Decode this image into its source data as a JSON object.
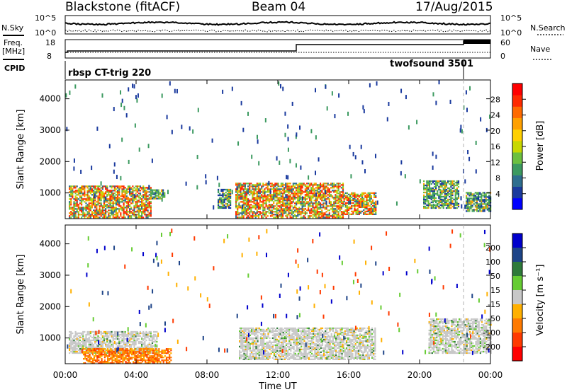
{
  "header": {
    "station": "Blackstone (fitACF)",
    "beam": "Beam 04",
    "date": "17/Aug/2015"
  },
  "top_panels": {
    "nsky_label": "N.Sky",
    "nsearch_label": "N.Search",
    "noise_ticks_left": [
      "10^5",
      "10^0"
    ],
    "noise_ticks_right": [
      "10^5",
      "10^0"
    ],
    "freq_label_1": "Freq.",
    "freq_label_2": "[MHz]",
    "freq_ticks": [
      "18",
      "8"
    ],
    "nave_label": "Nave",
    "nave_ticks": [
      "60",
      "0"
    ],
    "cpid_label": "CPID",
    "cpid_segments": [
      {
        "name": "rbsp CT-trig 220",
        "start_hour": 0.0
      },
      {
        "name": "twofsound 3501",
        "start_hour": 22.5
      }
    ]
  },
  "chart_data": [
    {
      "type": "heatmap",
      "title": "Power",
      "ylabel": "Slant Range [km]",
      "xlabel": "Time UT",
      "x_tick_labels": [
        "00:00",
        "04:00",
        "08:00",
        "12:00",
        "16:00",
        "20:00",
        "00:00"
      ],
      "x_range_hours": [
        0,
        24
      ],
      "ylim": [
        180,
        4600
      ],
      "y_ticks": [
        1000,
        2000,
        3000,
        4000
      ],
      "colorbar": {
        "label": "Power [dB]",
        "ticks": [
          "4",
          "8",
          "12",
          "16",
          "20",
          "24",
          "28"
        ],
        "colors": [
          "#0000ff",
          "#1a3a9e",
          "#2e6e8e",
          "#3c9a60",
          "#6cc040",
          "#c8d800",
          "#ffd000",
          "#ffa000",
          "#ff6a00",
          "#ff2a00",
          "#ff0000"
        ]
      },
      "echo_regions": [
        {
          "t0": 0.2,
          "t1": 4.8,
          "r0": 200,
          "r1": 1200,
          "level": "high"
        },
        {
          "t0": 4.8,
          "t1": 5.6,
          "r0": 800,
          "r1": 1100,
          "level": "medium"
        },
        {
          "t0": 8.6,
          "t1": 9.3,
          "r0": 500,
          "r1": 1100,
          "level": "medium"
        },
        {
          "t0": 9.6,
          "t1": 15.7,
          "r0": 200,
          "r1": 1300,
          "level": "high"
        },
        {
          "t0": 15.7,
          "t1": 17.5,
          "r0": 300,
          "r1": 1000,
          "level": "high"
        },
        {
          "t0": 20.2,
          "t1": 22.2,
          "r0": 500,
          "r1": 1400,
          "level": "medium"
        },
        {
          "t0": 22.6,
          "t1": 24.0,
          "r0": 400,
          "r1": 1000,
          "level": "medium"
        }
      ]
    },
    {
      "type": "heatmap",
      "title": "Velocity",
      "ylabel": "Slant Range [km]",
      "xlabel": "Time UT",
      "x_tick_labels": [
        "00:00",
        "04:00",
        "08:00",
        "12:00",
        "16:00",
        "20:00",
        "00:00"
      ],
      "x_range_hours": [
        0,
        24
      ],
      "ylim": [
        180,
        4600
      ],
      "y_ticks": [
        1000,
        2000,
        3000,
        4000
      ],
      "colorbar": {
        "label": "Velocity [m s⁻¹]",
        "ticks": [
          "200",
          "100",
          "50",
          "15",
          "-15",
          "-50",
          "-100",
          "-200"
        ],
        "colors": [
          "#0000cc",
          "#1e4488",
          "#2e7a3a",
          "#66cc33",
          "#c8c8c8",
          "#ffb000",
          "#ff7a00",
          "#ff3a00",
          "#ff0000"
        ]
      },
      "echo_regions": [
        {
          "t0": 0.2,
          "t1": 5.2,
          "r0": 500,
          "r1": 1200,
          "level": "ground"
        },
        {
          "t0": 1.0,
          "t1": 6.0,
          "r0": 180,
          "r1": 650,
          "level": "negative"
        },
        {
          "t0": 9.8,
          "t1": 17.5,
          "r0": 300,
          "r1": 1300,
          "level": "ground"
        },
        {
          "t0": 20.5,
          "t1": 24.0,
          "r0": 500,
          "r1": 1600,
          "level": "ground"
        }
      ]
    }
  ]
}
